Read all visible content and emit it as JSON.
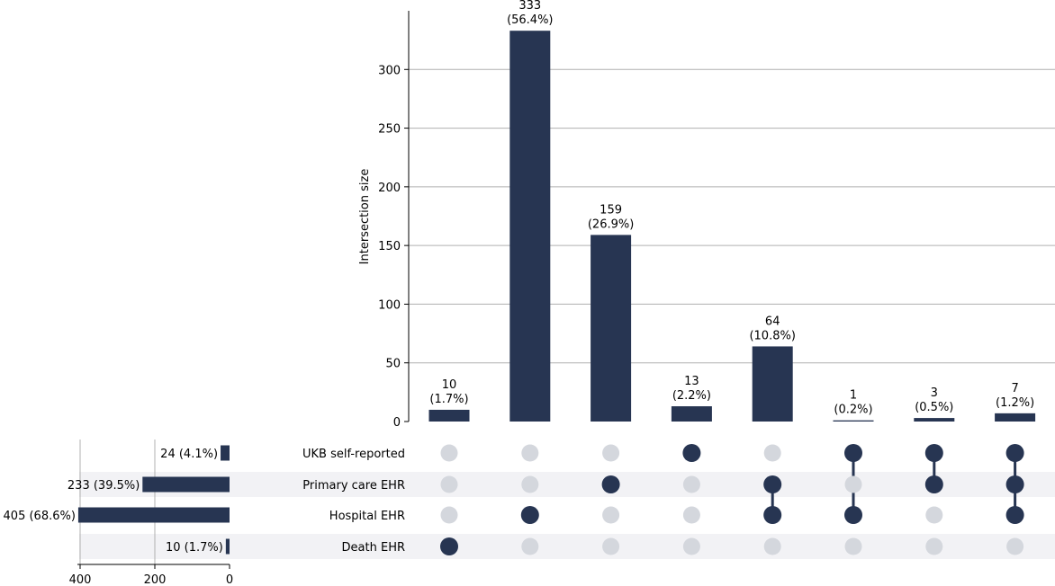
{
  "chart_data": {
    "type": "bar",
    "subtype": "upset",
    "ylabel": "Intersection size",
    "ylim": [
      0,
      350
    ],
    "yticks": [
      0,
      50,
      100,
      150,
      200,
      250,
      300
    ],
    "grid": true,
    "sets": [
      "UKB self-reported",
      "Primary care EHR",
      "Hospital EHR",
      "Death EHR"
    ],
    "intersections": [
      {
        "members": [
          "Death EHR"
        ],
        "value": 10,
        "label": "10",
        "pct": "(1.7%)"
      },
      {
        "members": [
          "Hospital EHR"
        ],
        "value": 333,
        "label": "333",
        "pct": "(56.4%)"
      },
      {
        "members": [
          "Primary care EHR"
        ],
        "value": 159,
        "label": "159",
        "pct": "(26.9%)"
      },
      {
        "members": [
          "UKB self-reported"
        ],
        "value": 13,
        "label": "13",
        "pct": "(2.2%)"
      },
      {
        "members": [
          "Primary care EHR",
          "Hospital EHR"
        ],
        "value": 64,
        "label": "64",
        "pct": "(10.8%)"
      },
      {
        "members": [
          "UKB self-reported",
          "Hospital EHR"
        ],
        "value": 1,
        "label": "1",
        "pct": "(0.2%)"
      },
      {
        "members": [
          "UKB self-reported",
          "Primary care EHR"
        ],
        "value": 3,
        "label": "3",
        "pct": "(0.5%)"
      },
      {
        "members": [
          "UKB self-reported",
          "Primary care EHR",
          "Hospital EHR"
        ],
        "value": 7,
        "label": "7",
        "pct": "(1.2%)"
      }
    ],
    "set_sizes": [
      {
        "set": "UKB self-reported",
        "value": 24,
        "label": "24 (4.1%)"
      },
      {
        "set": "Primary care EHR",
        "value": 233,
        "label": "233 (39.5%)"
      },
      {
        "set": "Hospital EHR",
        "value": 405,
        "label": "405 (68.6%)"
      },
      {
        "set": "Death EHR",
        "value": 10,
        "label": "10 (1.7%)"
      }
    ],
    "set_size_xlim": [
      0,
      405
    ],
    "set_size_xticks": [
      0,
      200,
      400
    ]
  },
  "colors": {
    "bar": "#273552",
    "dot_inactive": "#d4d7dd",
    "stripe": "#f2f2f5",
    "grid": "#b0b0b0"
  }
}
